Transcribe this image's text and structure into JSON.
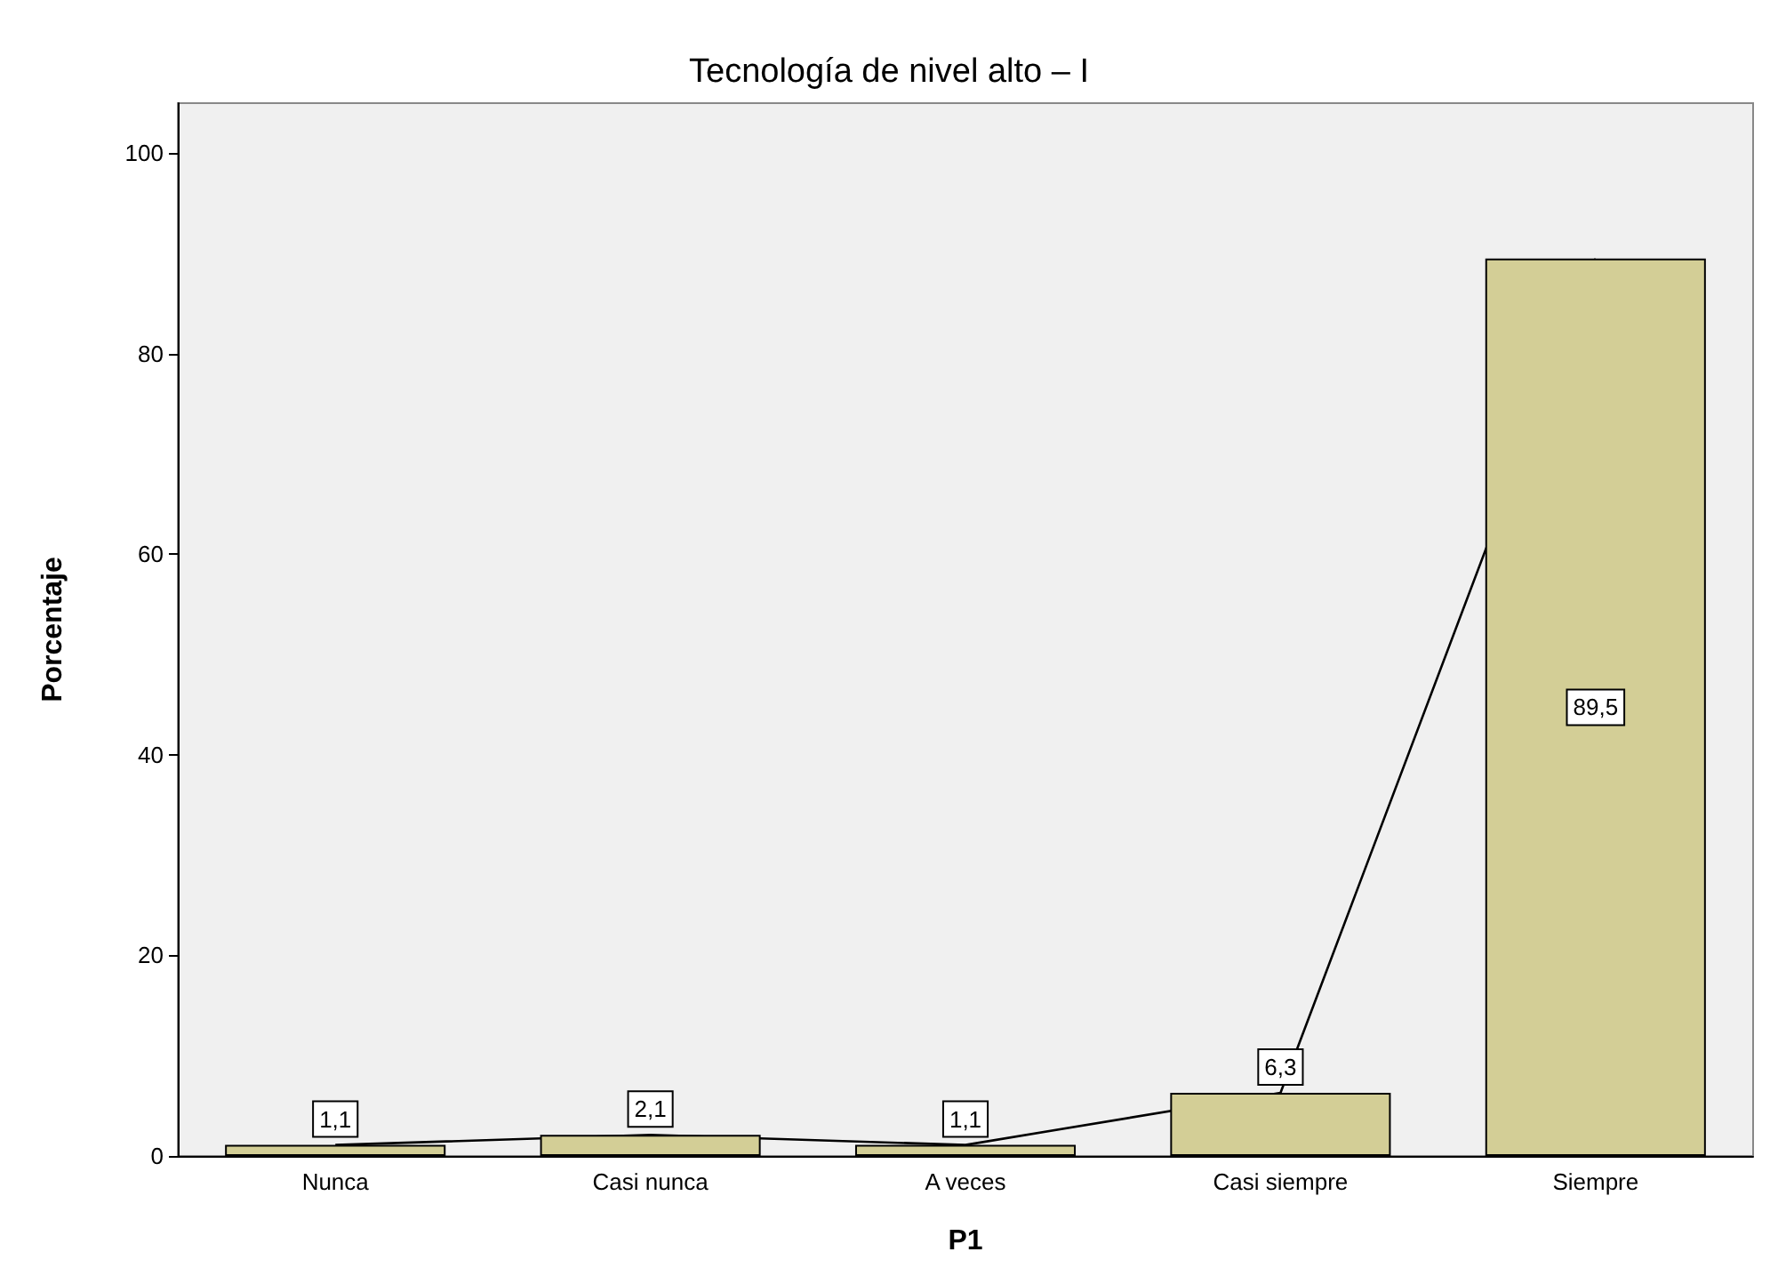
{
  "chart_data": {
    "type": "bar",
    "title": "Tecnología de nivel alto – I",
    "xlabel": "P1",
    "ylabel": "Porcentaje",
    "categories": [
      "Nunca",
      "Casi nunca",
      "A veces",
      "Casi siempre",
      "Siempre"
    ],
    "series": [
      {
        "color": "#d3ce96",
        "values": [
          1.1,
          2.1,
          1.1,
          6.3,
          89.5
        ],
        "value_labels": [
          "1,1",
          "2,1",
          "1,1",
          "6,3",
          "89,5"
        ]
      },
      {
        "type": "line",
        "color": "#000000",
        "values": [
          1.1,
          2.1,
          1.1,
          6.3,
          89.5
        ]
      }
    ],
    "ylim": [
      0,
      105
    ],
    "yticks": [
      0,
      20,
      40,
      60,
      80,
      100
    ],
    "grid": false,
    "marker": "none",
    "line_style": "solid"
  }
}
